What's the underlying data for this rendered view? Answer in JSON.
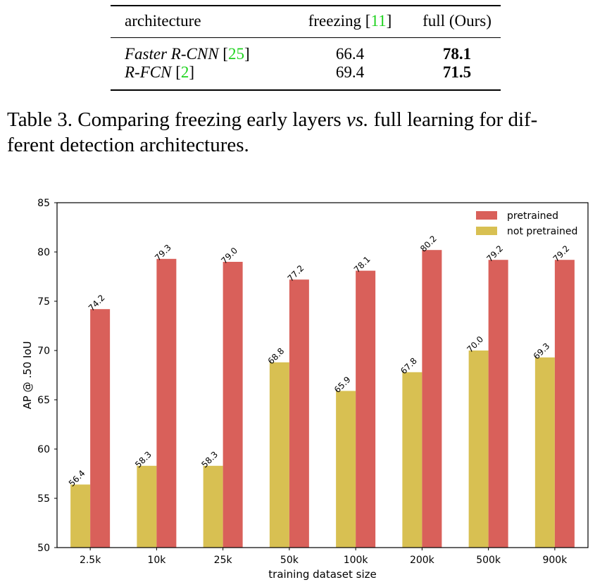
{
  "table": {
    "headers": [
      "architecture",
      "freezing",
      "11",
      "full (Ours)"
    ],
    "rows": [
      {
        "arch": "Faster R-CNN",
        "cite": "25",
        "freezing": "66.4",
        "full": "78.1"
      },
      {
        "arch": "R-FCN",
        "cite": "2",
        "freezing": "69.4",
        "full": "71.5"
      }
    ]
  },
  "caption": {
    "prefix": "Table 3. Comparing freezing early layers ",
    "vs": "vs.",
    "suffix_line1": " full learning for dif-",
    "line2": "ferent detection architectures."
  },
  "chart_data": {
    "type": "bar",
    "xlabel": "training dataset size",
    "ylabel": "AP @ .50 IoU",
    "ylim": [
      50,
      85
    ],
    "yticks": [
      50,
      55,
      60,
      65,
      70,
      75,
      80,
      85
    ],
    "categories": [
      "2.5k",
      "10k",
      "25k",
      "50k",
      "100k",
      "200k",
      "500k",
      "900k"
    ],
    "series": [
      {
        "name": "not pretrained",
        "color": "#d8c052",
        "values": [
          56.4,
          58.3,
          58.3,
          68.8,
          65.9,
          67.8,
          70.0,
          69.3
        ]
      },
      {
        "name": "pretrained",
        "color": "#d9605a",
        "values": [
          74.2,
          79.3,
          79.0,
          77.2,
          78.1,
          80.2,
          79.2,
          79.2
        ]
      }
    ],
    "legend": [
      "pretrained",
      "not pretrained"
    ],
    "legend_position": "top-right",
    "grid": false
  }
}
